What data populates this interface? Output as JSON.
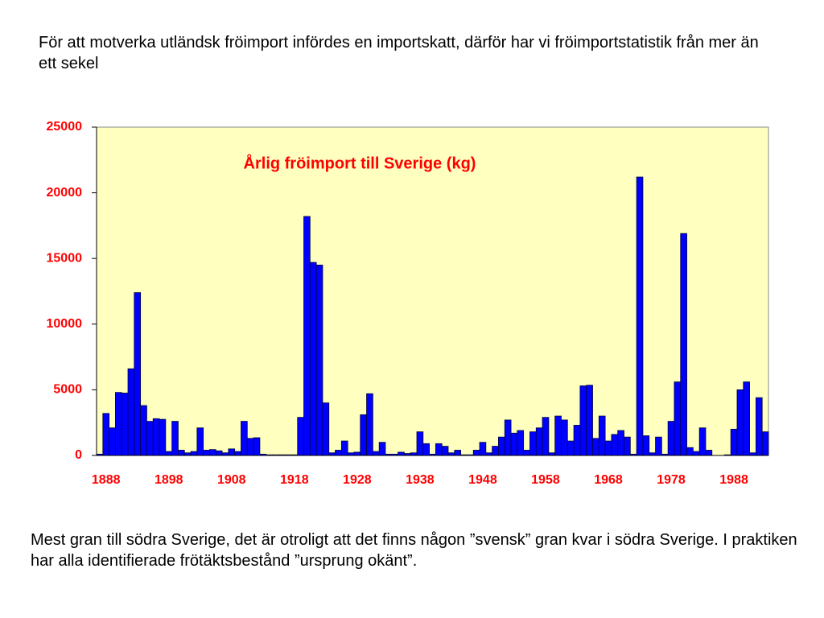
{
  "intro": "För att motverka utländsk fröimport infördes en importskatt, därför har vi fröimportstatistik från mer än ett sekel",
  "outro": "Mest gran till södra Sverige, det är otroligt att det finns någon ”svensk” gran kvar i södra Sverige. I praktiken har alla identifierade frötäktsbestånd ”ursprung okänt”.",
  "chart_data": {
    "type": "bar",
    "title": "Årlig fröimport till Sverige (kg)",
    "categories": [
      null,
      "1888",
      null,
      null,
      null,
      null,
      null,
      null,
      null,
      null,
      null,
      "1898",
      null,
      null,
      null,
      null,
      null,
      null,
      null,
      null,
      null,
      "1908",
      null,
      null,
      null,
      null,
      null,
      null,
      null,
      null,
      null,
      "1918",
      null,
      null,
      null,
      null,
      null,
      null,
      null,
      null,
      null,
      "1928",
      null,
      null,
      null,
      null,
      null,
      null,
      null,
      null,
      null,
      "1938",
      null,
      null,
      null,
      null,
      null,
      null,
      null,
      null,
      null,
      "1948",
      null,
      null,
      null,
      null,
      null,
      null,
      null,
      null,
      null,
      "1958",
      null,
      null,
      null,
      null,
      null,
      null,
      null,
      null,
      null,
      "1968",
      null,
      null,
      null,
      null,
      null,
      null,
      null,
      null,
      null,
      "1978",
      null,
      null,
      null,
      null,
      null,
      null,
      null,
      null,
      null,
      "1988",
      null,
      null,
      null,
      null,
      null
    ],
    "values": [
      100,
      3200,
      2100,
      4800,
      4750,
      6600,
      12400,
      3800,
      2600,
      2800,
      2750,
      300,
      2600,
      400,
      200,
      300,
      2100,
      400,
      450,
      350,
      200,
      500,
      300,
      2600,
      1300,
      1350,
      100,
      50,
      50,
      50,
      50,
      50,
      2900,
      18200,
      14700,
      14500,
      4000,
      200,
      400,
      1100,
      200,
      250,
      3100,
      4700,
      300,
      1000,
      100,
      100,
      250,
      150,
      200,
      1800,
      900,
      100,
      900,
      700,
      200,
      400,
      50,
      50,
      400,
      1000,
      200,
      700,
      1400,
      2700,
      1700,
      1900,
      400,
      1800,
      2100,
      2900,
      200,
      3000,
      2700,
      1100,
      2300,
      5300,
      5350,
      1300,
      3000,
      1100,
      1600,
      1900,
      1400,
      100,
      21200,
      1500,
      200,
      1400,
      100,
      2600,
      5600,
      16900,
      600,
      300,
      2100,
      400,
      0,
      0,
      50,
      2000,
      5000,
      5600,
      200,
      4400,
      1800
    ],
    "color": "#0000ff",
    "background": "#ffffc0",
    "title_color": "#ff0000",
    "tick_color": "#ff0000",
    "ylim": [
      0,
      25000
    ],
    "yticks": [
      0,
      5000,
      10000,
      15000,
      20000,
      25000
    ]
  }
}
